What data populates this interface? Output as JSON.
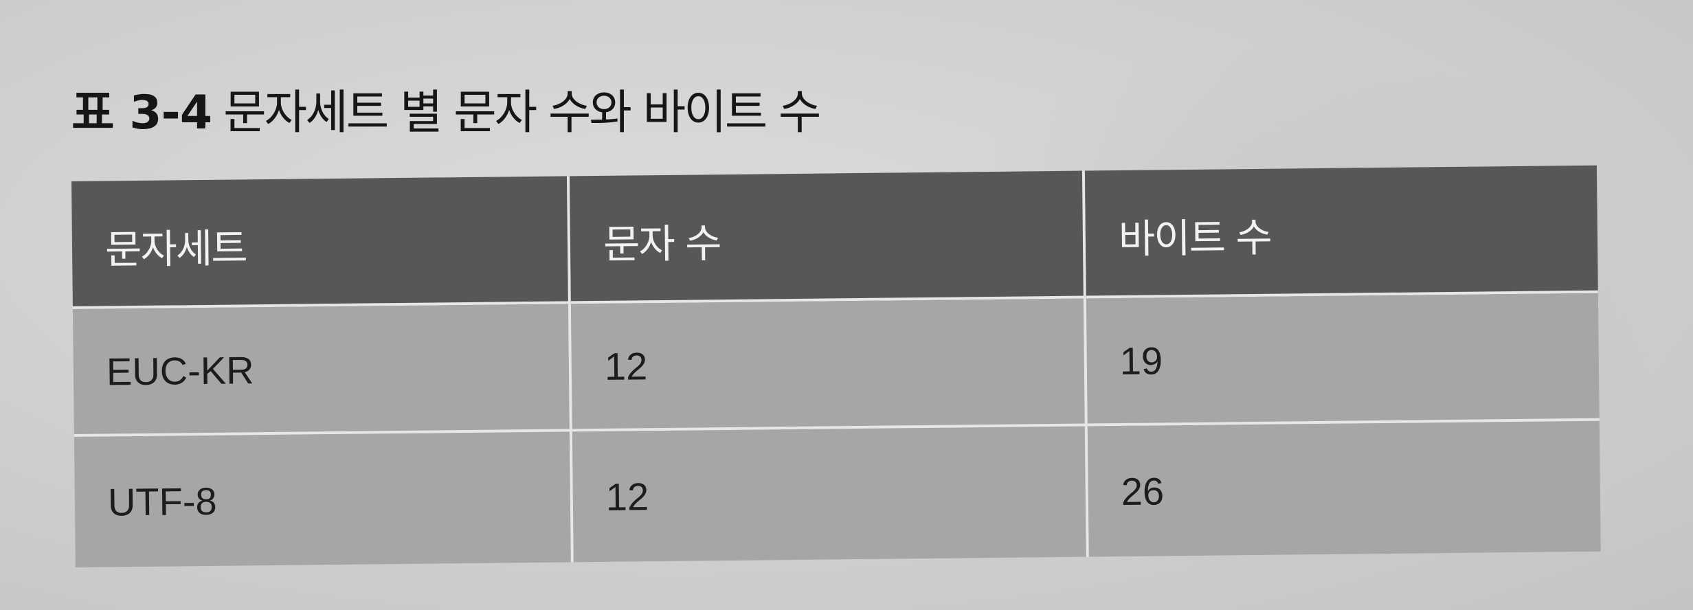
{
  "caption": {
    "label": "표 3-4",
    "text": "문자세트 별 문자 수와 바이트 수"
  },
  "table": {
    "headers": [
      "문자세트",
      "문자 수",
      "바이트 수"
    ],
    "rows": [
      [
        "EUC-KR",
        "12",
        "19"
      ],
      [
        "UTF-8",
        "12",
        "26"
      ]
    ]
  }
}
